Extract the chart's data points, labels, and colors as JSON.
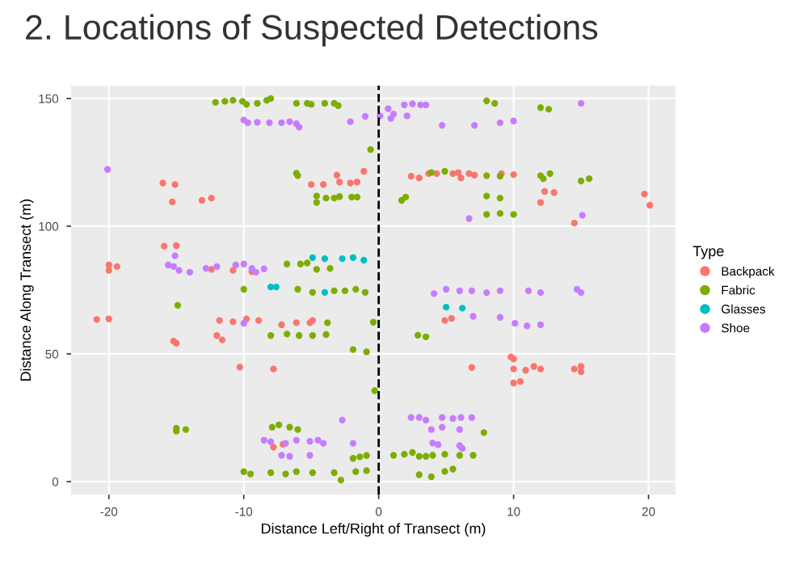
{
  "chart_data": {
    "type": "scatter",
    "title": "2. Locations of Suspected Detections",
    "xlabel": "Distance Left/Right of Transect (m)",
    "ylabel": "Distance Along Transect (m)",
    "legend_title": "Type",
    "legend": "right",
    "grid": true,
    "marker": "circle",
    "xlim": [
      -22.8,
      22.0
    ],
    "ylim": [
      -5.1,
      155
    ],
    "xticks": [
      -20,
      -10,
      0,
      10,
      20
    ],
    "yticks": [
      0,
      50,
      100,
      150
    ],
    "ref_lines": [
      {
        "axis": "x",
        "value": 0,
        "color": "#000000",
        "line_style": "dashed"
      }
    ],
    "series": [
      {
        "name": "Backpack",
        "color": "#f8766d",
        "x": [
          -16.0,
          -15.1,
          -15.3,
          -13.1,
          -12.4,
          -5.0,
          -4.1,
          -3.1,
          -2.9,
          -2.1,
          -1.6,
          -1.1,
          -20.0,
          -20.0,
          -19.4,
          -15.9,
          -15.0,
          -12.4,
          -10.8,
          -9.4,
          2.4,
          3.0,
          3.7,
          4.3,
          5.5,
          5.9,
          6.1,
          6.7,
          7.1,
          9.1,
          10.0,
          12.3,
          13.0,
          12.0,
          19.7,
          20.1,
          14.5,
          -20.9,
          -20.0,
          -15.2,
          -15.0,
          -12.0,
          -11.6,
          -11.8,
          -10.8,
          -9.8,
          -8.9,
          -7.2,
          -6.1,
          -5.1,
          -4.9,
          -10.3,
          -7.8,
          -7.8,
          -7.1,
          4.9,
          5.4,
          9.8,
          10.0,
          6.9,
          10.0,
          10.9,
          11.5,
          12.0,
          14.5,
          15.0,
          15.0,
          10.0,
          10.5
        ],
        "values": [
          116.9,
          116.3,
          109.5,
          110.1,
          111.0,
          116.3,
          116.3,
          120.0,
          117.3,
          116.9,
          117.3,
          121.5,
          84.8,
          82.7,
          84.2,
          92.2,
          92.4,
          83.1,
          82.7,
          82.2,
          119.6,
          118.9,
          120.6,
          120.6,
          120.6,
          121.0,
          118.9,
          120.6,
          120.0,
          120.6,
          120.2,
          113.6,
          113.2,
          109.3,
          112.6,
          108.2,
          101.2,
          63.5,
          63.7,
          55.0,
          54.2,
          57.2,
          55.5,
          63.1,
          62.6,
          63.7,
          63.1,
          61.4,
          62.2,
          62.2,
          63.1,
          44.8,
          44.1,
          13.5,
          14.6,
          63.1,
          63.9,
          48.8,
          48.0,
          44.7,
          44.1,
          43.6,
          45.1,
          44.1,
          44.1,
          45.1,
          43.0,
          38.6,
          39.2
        ]
      },
      {
        "name": "Fabric",
        "color": "#7cae00",
        "x": [
          -12.1,
          -11.4,
          -10.8,
          -10.1,
          -9.8,
          -9.0,
          -8.3,
          -8.0,
          -6.1,
          -5.3,
          -5.0,
          -4.0,
          -3.3,
          -3.0,
          -0.6,
          -6.1,
          -6.0,
          -4.6,
          -4.6,
          -3.9,
          -3.3,
          -2.9,
          -2.0,
          -1.6,
          -6.8,
          -5.8,
          -5.3,
          -4.6,
          -3.6,
          8.0,
          8.6,
          12.0,
          12.6,
          3.9,
          4.9,
          8.0,
          9.0,
          12.0,
          12.2,
          12.7,
          15.0,
          15.6,
          1.7,
          2.0,
          8.0,
          9.0,
          8.0,
          9.0,
          10.0,
          -14.9,
          -8.0,
          -6.8,
          -5.9,
          -4.9,
          -3.9,
          -3.8,
          -1.9,
          -0.9,
          -0.4,
          -15.0,
          -15.0,
          -14.3,
          -7.9,
          -7.4,
          -6.6,
          -6.0,
          -10.0,
          -9.5,
          -8.0,
          -6.9,
          -6.1,
          -4.9,
          -3.3,
          -1.7,
          -0.9,
          -1.9,
          -1.4,
          -0.9,
          -2.8,
          -0.3,
          -10.0,
          -6.0,
          -4.9,
          -3.3,
          -2.5,
          -1.7,
          -1.0,
          2.9,
          3.5,
          7.8,
          1.1,
          1.9,
          2.5,
          3.0,
          3.5,
          4.0,
          4.9,
          6.0,
          7.0,
          3.0,
          3.9,
          4.9,
          5.5
        ],
        "values": [
          148.5,
          148.9,
          149.3,
          148.9,
          147.7,
          148.1,
          149.3,
          150.0,
          148.1,
          148.1,
          147.7,
          148.1,
          148.1,
          147.2,
          130.0,
          120.7,
          119.8,
          111.8,
          109.3,
          111.0,
          111.0,
          111.6,
          111.4,
          111.4,
          85.2,
          85.2,
          85.6,
          83.1,
          83.5,
          149.1,
          148.1,
          146.4,
          145.8,
          121.0,
          121.5,
          119.8,
          119.6,
          119.8,
          118.6,
          120.6,
          117.7,
          118.6,
          110.1,
          111.4,
          111.8,
          111.0,
          104.6,
          105.0,
          104.6,
          69.0,
          57.2,
          57.8,
          57.2,
          57.2,
          57.6,
          62.2,
          51.7,
          50.8,
          62.4,
          20.9,
          19.8,
          20.4,
          21.3,
          22.2,
          21.3,
          20.4,
          3.9,
          3.0,
          3.5,
          3.0,
          3.9,
          3.5,
          3.5,
          3.9,
          4.3,
          9.1,
          9.7,
          10.2,
          0.6,
          35.6,
          75.3,
          75.3,
          74.1,
          74.7,
          74.7,
          75.3,
          74.1,
          57.3,
          56.7,
          19.2,
          10.3,
          10.7,
          11.4,
          9.9,
          9.9,
          10.3,
          10.7,
          10.3,
          10.3,
          2.7,
          1.9,
          4.0,
          4.9
        ]
      },
      {
        "name": "Glasses",
        "color": "#00bfc4",
        "x": [
          -4.9,
          -4.0,
          -2.7,
          -1.9,
          -1.1,
          -8.0,
          -7.6,
          -4.0,
          5.0,
          6.2
        ],
        "values": [
          87.7,
          87.3,
          87.3,
          87.7,
          86.7,
          76.2,
          76.2,
          74.1,
          68.3,
          67.9
        ]
      },
      {
        "name": "Shoe",
        "color": "#c77cff",
        "x": [
          -10.0,
          -9.7,
          -9.0,
          -8.1,
          -7.2,
          -6.6,
          -6.1,
          -5.9,
          -2.1,
          -1.0,
          -20.1,
          -15.1,
          -15.6,
          -15.2,
          -14.8,
          -14.0,
          -12.8,
          -12.0,
          -10.6,
          -10.0,
          -9.4,
          -9.1,
          -8.5,
          0.1,
          0.7,
          1.1,
          0.9,
          1.9,
          2.5,
          3.1,
          3.5,
          2.1,
          4.7,
          7.1,
          9.0,
          10.0,
          15.0,
          6.7,
          15.1,
          -8.5,
          -8.0,
          -6.9,
          -6.1,
          -5.1,
          -4.5,
          -4.1,
          -2.7,
          -7.2,
          -6.6,
          -5.1,
          -1.9,
          -10.0,
          4.1,
          5.0,
          6.0,
          6.9,
          8.0,
          9.0,
          11.1,
          12.0,
          14.7,
          15.0,
          7.0,
          9.0,
          10.1,
          11.0,
          12.0,
          2.4,
          3.0,
          3.5,
          4.7,
          5.5,
          6.1,
          6.9,
          3.9,
          4.7,
          6.0,
          4.0,
          4.4,
          6.0,
          6.2
        ],
        "values": [
          141.6,
          140.5,
          140.7,
          140.5,
          140.5,
          140.9,
          140.1,
          138.8,
          140.9,
          143.0,
          122.2,
          88.4,
          84.8,
          84.2,
          82.7,
          82.0,
          83.5,
          84.2,
          84.8,
          85.2,
          83.5,
          82.0,
          83.3,
          143.2,
          146.0,
          143.9,
          142.2,
          147.5,
          147.9,
          147.5,
          147.5,
          143.2,
          139.5,
          139.5,
          140.5,
          141.2,
          148.1,
          103.0,
          104.3,
          16.2,
          15.6,
          15.0,
          16.2,
          15.8,
          16.2,
          15.0,
          24.1,
          10.3,
          9.9,
          10.3,
          15.0,
          62.0,
          73.6,
          75.3,
          74.7,
          74.7,
          74.0,
          74.7,
          74.7,
          74.0,
          75.3,
          74.0,
          64.7,
          64.3,
          62.0,
          61.0,
          61.4,
          25.1,
          25.1,
          24.1,
          25.1,
          24.7,
          25.1,
          25.1,
          20.4,
          21.3,
          20.4,
          15.1,
          14.5,
          14.1,
          13.0
        ]
      }
    ]
  }
}
